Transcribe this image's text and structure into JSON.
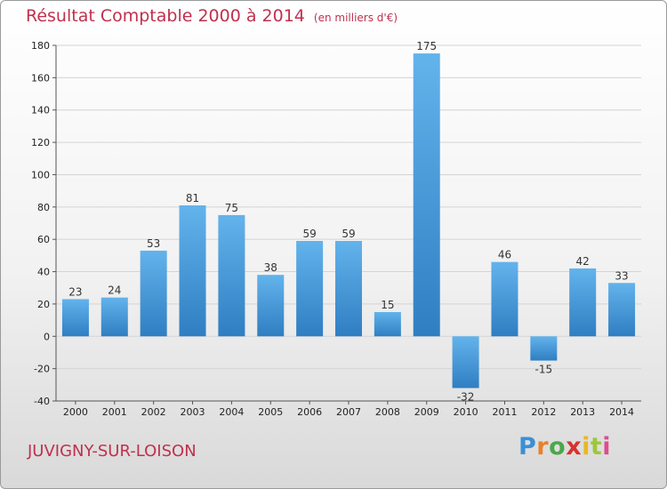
{
  "title": "Résultat Comptable 2000 à 2014",
  "subtitle": "(en milliers d'€)",
  "commune": "JUVIGNY-SUR-LOISON",
  "logo": {
    "letters": [
      "P",
      "r",
      "o",
      "x",
      "i",
      "t",
      "i"
    ],
    "colors": [
      "#3b8fd6",
      "#e8812b",
      "#4aa84a",
      "#d8322e",
      "#e8b820",
      "#9fc63b",
      "#e04b8f"
    ]
  },
  "colors": {
    "title": "#c0304e",
    "bar_light": "#63b3ec",
    "bar_dark": "#2f7ec2"
  },
  "chart_data": {
    "type": "bar",
    "title": "Résultat Comptable 2000 à 2014",
    "xlabel": "",
    "ylabel": "en milliers d'€",
    "categories": [
      "2000",
      "2001",
      "2002",
      "2003",
      "2004",
      "2005",
      "2006",
      "2007",
      "2008",
      "2009",
      "2010",
      "2011",
      "2012",
      "2013",
      "2014"
    ],
    "values": [
      23,
      24,
      53,
      81,
      75,
      38,
      59,
      59,
      15,
      175,
      -32,
      46,
      -15,
      42,
      33
    ],
    "ylim": [
      -40,
      180
    ],
    "yticks": [
      -40,
      -20,
      0,
      20,
      40,
      60,
      80,
      100,
      120,
      140,
      160,
      180
    ],
    "grid": true
  }
}
